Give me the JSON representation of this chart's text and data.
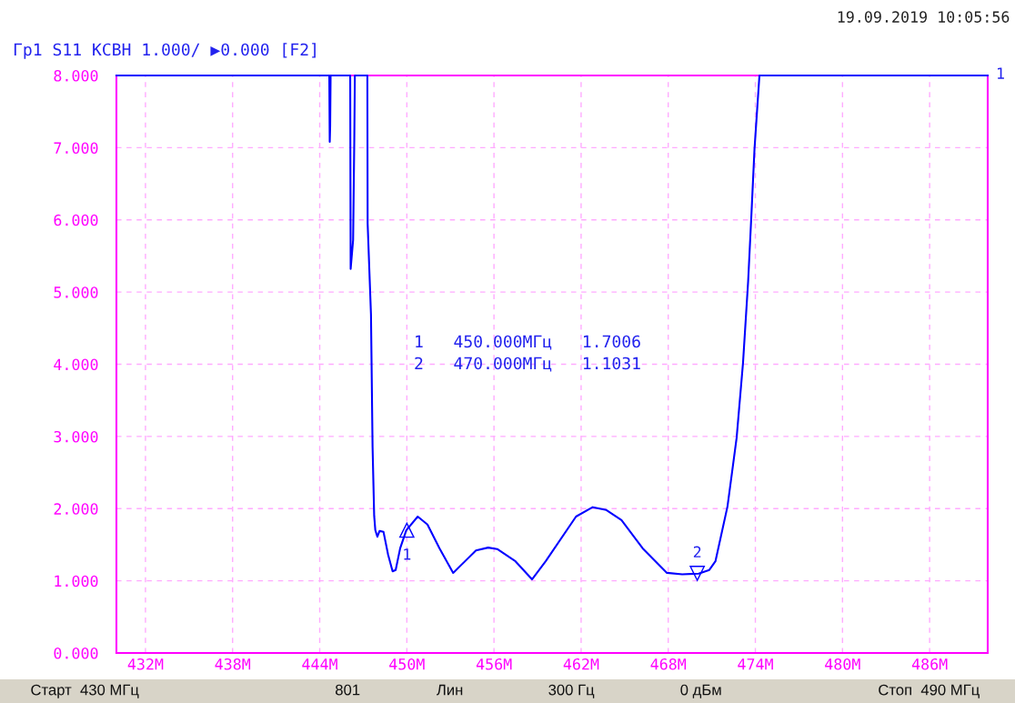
{
  "chart_data": {
    "type": "line",
    "title": "Гр1 S11 КСВН 1.000/ ▶0.000 [F2]",
    "xlim": [
      430,
      490
    ],
    "ylim": [
      0,
      8
    ],
    "xticks": [
      {
        "value": 432,
        "label": "432M"
      },
      {
        "value": 438,
        "label": "438M"
      },
      {
        "value": 444,
        "label": "444M"
      },
      {
        "value": 450,
        "label": "450M"
      },
      {
        "value": 456,
        "label": "456M"
      },
      {
        "value": 462,
        "label": "462M"
      },
      {
        "value": 468,
        "label": "468M"
      },
      {
        "value": 474,
        "label": "474M"
      },
      {
        "value": 480,
        "label": "480M"
      },
      {
        "value": 486,
        "label": "486M"
      }
    ],
    "yticks": [
      {
        "value": 0,
        "label": "0.000"
      },
      {
        "value": 1,
        "label": "1.000"
      },
      {
        "value": 2,
        "label": "2.000"
      },
      {
        "value": 3,
        "label": "3.000"
      },
      {
        "value": 4,
        "label": "4.000"
      },
      {
        "value": 5,
        "label": "5.000"
      },
      {
        "value": 6,
        "label": "6.000"
      },
      {
        "value": 7,
        "label": "7.000"
      },
      {
        "value": 8,
        "label": "8.000"
      }
    ],
    "grid": true,
    "legend": false,
    "marker": "none",
    "line_style": "solid",
    "series": [
      {
        "color": "#0000ff",
        "x": [
          430,
          444.66,
          444.69,
          444.72,
          444.75,
          446.1,
          446.13,
          446.3,
          446.38,
          446.42,
          447.28,
          447.3,
          447.53,
          447.64,
          447.75,
          447.83,
          447.97,
          448.12,
          448.39,
          448.71,
          449.02,
          449.23,
          449.54,
          449.96,
          450.75,
          451.42,
          452.25,
          453.19,
          454.76,
          455.6,
          456.22,
          457.48,
          458.62,
          459.56,
          461.65,
          462.8,
          463.74,
          464.78,
          466.24,
          467.91,
          468.96,
          470.1,
          470.83,
          471.25,
          472.08,
          472.71,
          473.15,
          473.5,
          473.72,
          473.94,
          474.28,
          490
        ],
        "values": [
          8,
          8,
          7.08,
          7.3,
          8,
          8,
          5.32,
          5.72,
          7.1,
          8,
          8,
          5.95,
          4.69,
          2.85,
          1.9,
          1.7,
          1.61,
          1.69,
          1.68,
          1.36,
          1.13,
          1.15,
          1.45,
          1.7,
          1.89,
          1.78,
          1.45,
          1.11,
          1.42,
          1.46,
          1.44,
          1.27,
          1.02,
          1.27,
          1.89,
          2.02,
          1.98,
          1.84,
          1.45,
          1.11,
          1.09,
          1.1,
          1.15,
          1.27,
          2.03,
          2.98,
          4.02,
          5.14,
          6.04,
          6.98,
          8,
          8
        ]
      }
    ],
    "annotations": [
      "19.09.2019 10:05:56",
      "1   450.000МГц   1.7006",
      "2   470.000МГц   1.1031",
      "1",
      {
        "text": "1",
        "x": 450,
        "y": 1.7006
      },
      {
        "text": "2",
        "x": 470,
        "y": 1.1031
      },
      "Старт  430 МГц",
      "801",
      "Лин",
      "300 Гц",
      "0 дБм",
      "Стоп  490 МГц"
    ]
  }
}
